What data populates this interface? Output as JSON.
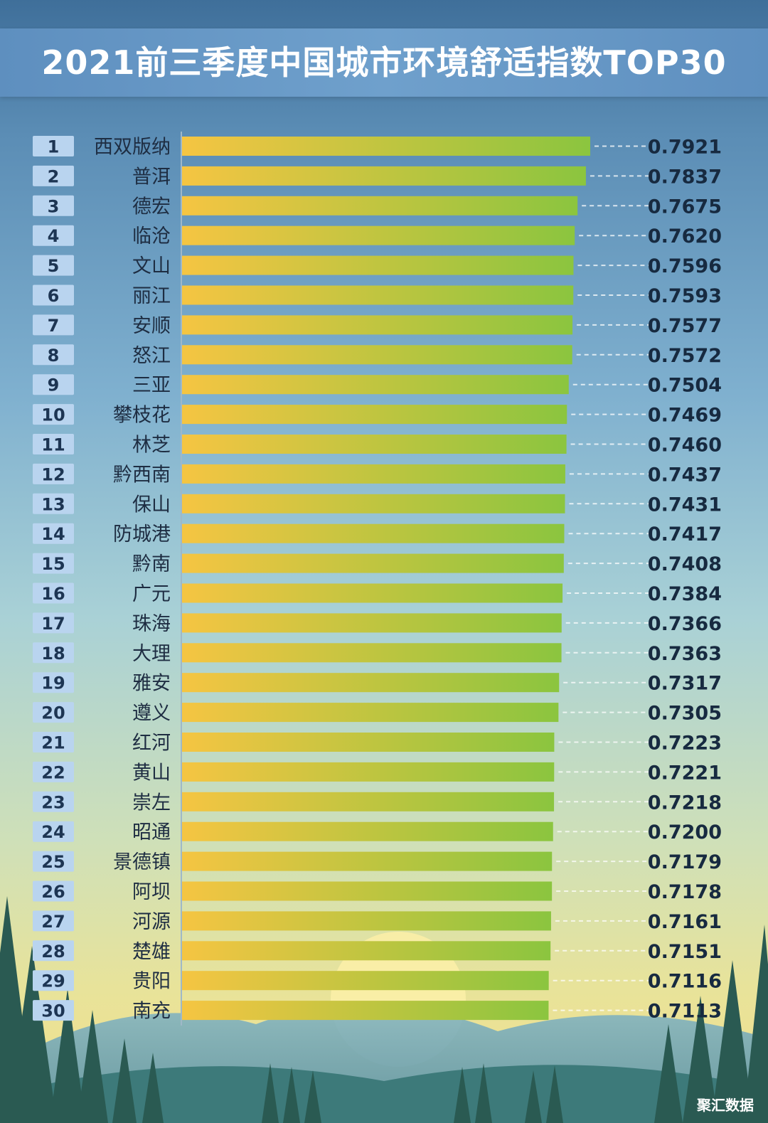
{
  "title": "2021前三季度中国城市环境舒适指数TOP30",
  "watermark": "聚汇数据",
  "colors": {
    "bar_start": "#f5c542",
    "bar_end": "#8bc53f",
    "rank_box": "#b9d4ef",
    "axis": "#9fb8c8"
  },
  "chart_data": {
    "type": "bar",
    "orientation": "horizontal",
    "title": "2021前三季度中国城市环境舒适指数TOP30",
    "xlabel": "",
    "ylabel": "",
    "ranks": [
      "1",
      "2",
      "3",
      "4",
      "5",
      "6",
      "7",
      "8",
      "9",
      "10",
      "11",
      "12",
      "13",
      "14",
      "15",
      "16",
      "17",
      "18",
      "19",
      "20",
      "21",
      "22",
      "23",
      "24",
      "25",
      "26",
      "27",
      "28",
      "29",
      "30"
    ],
    "categories": [
      "西双版纳",
      "普洱",
      "德宏",
      "临沧",
      "文山",
      "丽江",
      "安顺",
      "怒江",
      "三亚",
      "攀枝花",
      "林芝",
      "黔西南",
      "保山",
      "防城港",
      "黔南",
      "广元",
      "珠海",
      "大理",
      "雅安",
      "遵义",
      "红河",
      "黄山",
      "崇左",
      "昭通",
      "景德镇",
      "阿坝",
      "河源",
      "楚雄",
      "贵阳",
      "南充"
    ],
    "values": [
      0.7921,
      0.7837,
      0.7675,
      0.762,
      0.7596,
      0.7593,
      0.7577,
      0.7572,
      0.7504,
      0.7469,
      0.746,
      0.7437,
      0.7431,
      0.7417,
      0.7408,
      0.7384,
      0.7366,
      0.7363,
      0.7317,
      0.7305,
      0.7223,
      0.7221,
      0.7218,
      0.72,
      0.7179,
      0.7178,
      0.7161,
      0.7151,
      0.7116,
      0.7113
    ],
    "value_labels": [
      "0.7921",
      "0.7837",
      "0.7675",
      "0.7620",
      "0.7596",
      "0.7593",
      "0.7577",
      "0.7572",
      "0.7504",
      "0.7469",
      "0.7460",
      "0.7437",
      "0.7431",
      "0.7417",
      "0.7408",
      "0.7384",
      "0.7366",
      "0.7363",
      "0.7317",
      "0.7305",
      "0.7223",
      "0.7221",
      "0.7218",
      "0.7200",
      "0.7179",
      "0.7178",
      "0.7161",
      "0.7151",
      "0.7116",
      "0.7113"
    ],
    "xlim": [
      0,
      0.7921
    ],
    "grid": false
  }
}
